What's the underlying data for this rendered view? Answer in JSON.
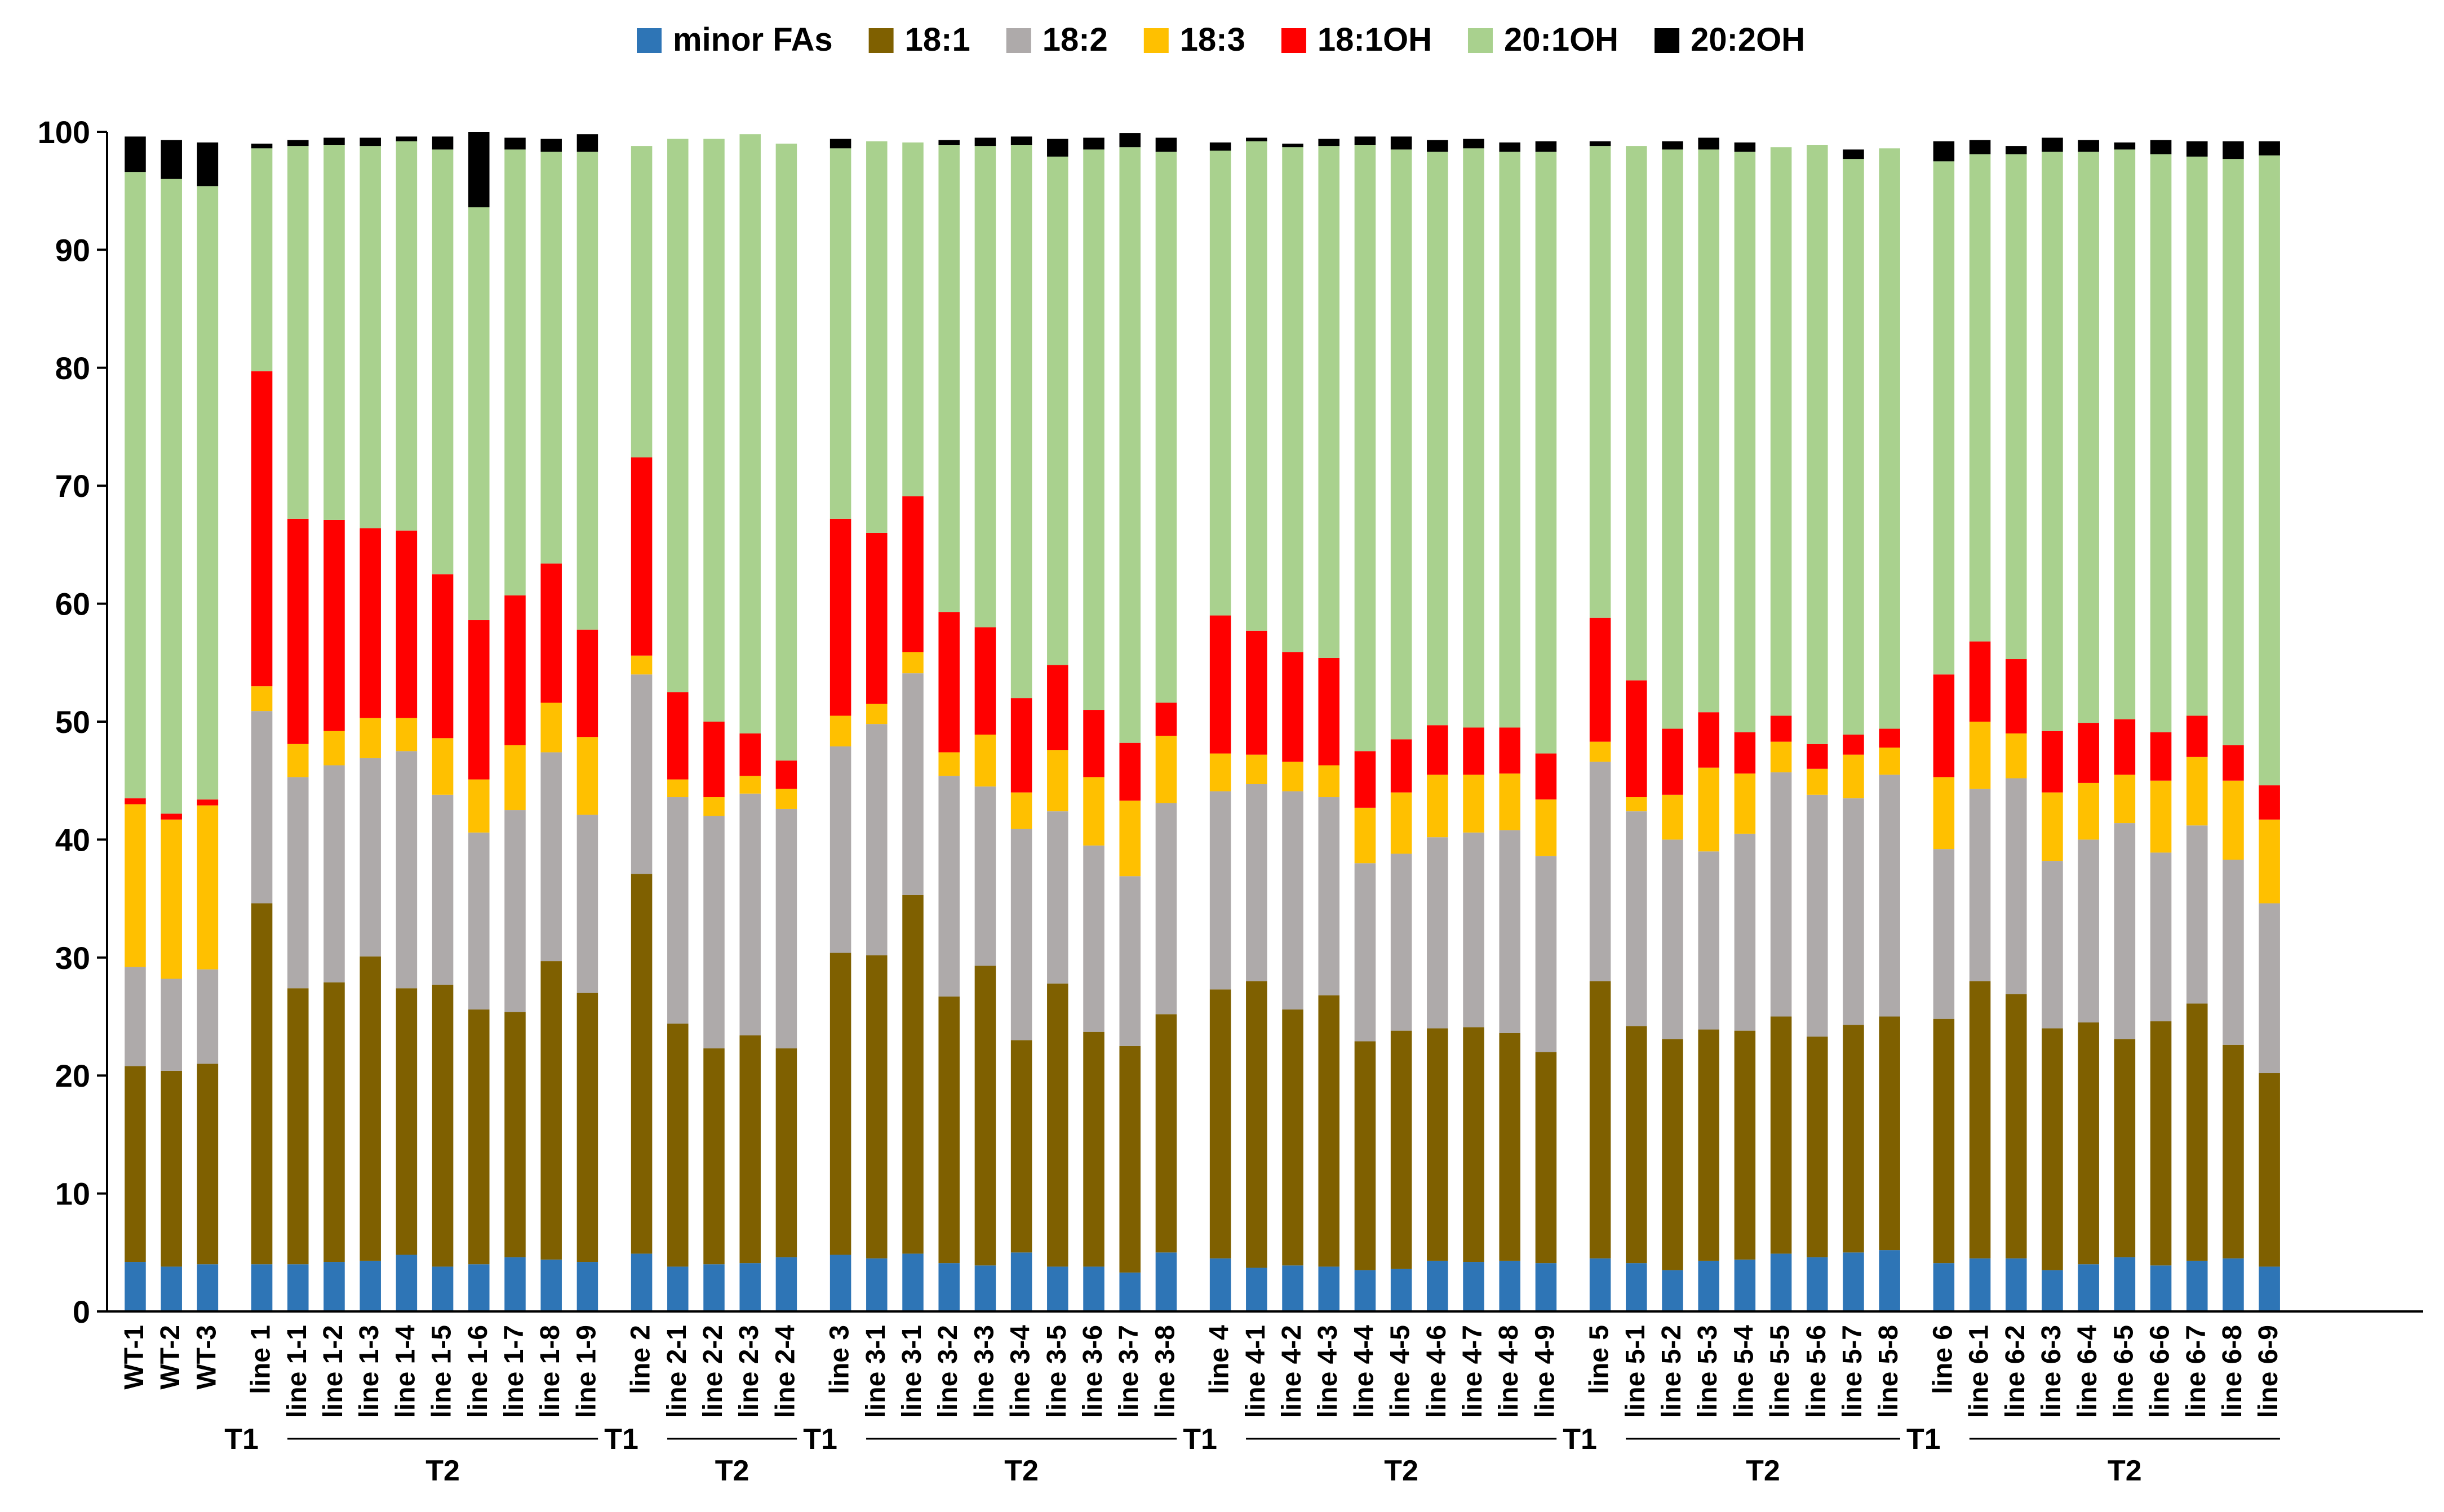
{
  "chart_data": {
    "type": "bar",
    "stacked": true,
    "title": "",
    "xlabel": "",
    "ylabel": "",
    "ylim": [
      0,
      100
    ],
    "yticks": [
      0,
      10,
      20,
      30,
      40,
      50,
      60,
      70,
      80,
      90,
      100
    ],
    "grid": false,
    "legend_position": "top",
    "series": [
      {
        "name": "minor FAs",
        "color": "#2E75B6"
      },
      {
        "name": "18:1",
        "color": "#7F6000"
      },
      {
        "name": "18:2",
        "color": "#AEAAAA"
      },
      {
        "name": "18:3",
        "color": "#FFC000"
      },
      {
        "name": "18:1OH",
        "color": "#FF0000"
      },
      {
        "name": "20:1OH",
        "color": "#A9D18E"
      },
      {
        "name": "20:2OH",
        "color": "#000000"
      }
    ],
    "categories": [
      "WT-1",
      "WT-2",
      "WT-3",
      "line 1",
      "line 1-1",
      "line 1-2",
      "line 1-3",
      "line 1-4",
      "line 1-5",
      "line 1-6",
      "line 1-7",
      "line 1-8",
      "line 1-9",
      "line 2",
      "line 2-1",
      "line 2-2",
      "line 2-3",
      "line 2-4",
      "line 3",
      "line 3-1",
      "line 3-1",
      "line 3-2",
      "line 3-3",
      "line 3-4",
      "line 3-5",
      "line 3-6",
      "line 3-7",
      "line 3-8",
      "line 4",
      "line 4-1",
      "line 4-2",
      "line 4-3",
      "line 4-4",
      "line 4-5",
      "line 4-6",
      "line 4-7",
      "line 4-8",
      "line 4-9",
      "line 5",
      "line 5-1",
      "line 5-2",
      "line 5-3",
      "line 5-4",
      "line 5-5",
      "line 5-6",
      "line 5-7",
      "line 5-8",
      "line 6",
      "line 6-1",
      "line 6-2",
      "line 6-3",
      "line 6-4",
      "line 6-5",
      "line 6-6",
      "line 6-7",
      "line 6-8",
      "line 6-9"
    ],
    "groups": [
      {
        "start": 0,
        "count": 3,
        "t1_label": "",
        "t2_label": ""
      },
      {
        "start": 3,
        "count": 10,
        "t1_label": "T1",
        "t2_label": "T2"
      },
      {
        "start": 13,
        "count": 5,
        "t1_label": "T1",
        "t2_label": "T2"
      },
      {
        "start": 18,
        "count": 10,
        "t1_label": "T1",
        "t2_label": "T2"
      },
      {
        "start": 28,
        "count": 10,
        "t1_label": "T1",
        "t2_label": "T2"
      },
      {
        "start": 38,
        "count": 9,
        "t1_label": "T1",
        "t2_label": "T2"
      },
      {
        "start": 47,
        "count": 10,
        "t1_label": "T1",
        "t2_label": "T2"
      }
    ],
    "cumulative_values": [
      [
        4.2,
        20.8,
        29.2,
        43.0,
        43.5,
        96.6,
        99.6
      ],
      [
        3.8,
        20.4,
        28.2,
        41.7,
        42.2,
        96.0,
        99.3
      ],
      [
        4.0,
        21.0,
        29.0,
        42.9,
        43.4,
        95.4,
        99.1
      ],
      [
        4.0,
        34.6,
        50.9,
        53.0,
        79.7,
        98.6,
        99.0
      ],
      [
        4.0,
        27.4,
        45.3,
        48.1,
        67.2,
        98.8,
        99.3
      ],
      [
        4.2,
        27.9,
        46.3,
        49.2,
        67.1,
        98.9,
        99.5
      ],
      [
        4.3,
        30.1,
        46.9,
        50.3,
        66.4,
        98.8,
        99.5
      ],
      [
        4.8,
        27.4,
        47.5,
        50.3,
        66.2,
        99.2,
        99.6
      ],
      [
        3.8,
        27.7,
        43.8,
        48.6,
        62.5,
        98.5,
        99.6
      ],
      [
        4.0,
        25.6,
        40.6,
        45.1,
        58.6,
        93.6,
        100.0
      ],
      [
        4.6,
        25.4,
        42.5,
        48.0,
        60.7,
        98.5,
        99.5
      ],
      [
        4.4,
        29.7,
        47.4,
        51.6,
        63.4,
        98.3,
        99.4
      ],
      [
        4.2,
        27.0,
        42.1,
        48.7,
        57.8,
        98.3,
        99.8
      ],
      [
        4.9,
        37.1,
        54.0,
        55.6,
        72.4,
        98.8,
        98.8
      ],
      [
        3.8,
        24.4,
        43.6,
        45.1,
        52.5,
        99.4,
        99.4
      ],
      [
        4.0,
        22.3,
        42.0,
        43.6,
        50.0,
        99.4,
        99.4
      ],
      [
        4.1,
        23.4,
        43.9,
        45.4,
        49.0,
        99.8,
        99.8
      ],
      [
        4.6,
        22.3,
        42.6,
        44.3,
        46.7,
        99.0,
        99.0
      ],
      [
        4.8,
        30.4,
        47.9,
        50.5,
        67.2,
        98.6,
        99.4
      ],
      [
        4.5,
        30.2,
        49.8,
        51.5,
        66.0,
        99.2,
        99.2
      ],
      [
        4.9,
        35.3,
        54.1,
        55.9,
        69.1,
        99.1,
        99.1
      ],
      [
        4.1,
        26.7,
        45.4,
        47.4,
        59.3,
        98.9,
        99.3
      ],
      [
        3.9,
        29.3,
        44.5,
        48.9,
        58.0,
        98.8,
        99.5
      ],
      [
        5.0,
        23.0,
        40.9,
        44.0,
        52.0,
        98.9,
        99.6
      ],
      [
        3.8,
        27.8,
        42.4,
        47.6,
        54.8,
        97.9,
        99.4
      ],
      [
        3.8,
        23.7,
        39.5,
        45.3,
        51.0,
        98.5,
        99.5
      ],
      [
        3.3,
        22.5,
        36.9,
        43.3,
        48.2,
        98.7,
        99.9
      ],
      [
        5.0,
        25.2,
        43.1,
        48.8,
        51.6,
        98.3,
        99.5
      ],
      [
        4.5,
        27.3,
        44.1,
        47.3,
        59.0,
        98.4,
        99.1
      ],
      [
        3.7,
        28.0,
        44.7,
        47.2,
        57.7,
        99.2,
        99.5
      ],
      [
        3.9,
        25.6,
        44.1,
        46.6,
        55.9,
        98.7,
        99.0
      ],
      [
        3.8,
        26.8,
        43.6,
        46.3,
        55.4,
        98.8,
        99.4
      ],
      [
        3.5,
        22.9,
        38.0,
        42.7,
        47.5,
        98.9,
        99.6
      ],
      [
        3.6,
        23.8,
        38.8,
        44.0,
        48.5,
        98.5,
        99.6
      ],
      [
        4.3,
        24.0,
        40.2,
        45.5,
        49.7,
        98.3,
        99.3
      ],
      [
        4.2,
        24.1,
        40.6,
        45.5,
        49.5,
        98.6,
        99.4
      ],
      [
        4.3,
        23.6,
        40.8,
        45.6,
        49.5,
        98.3,
        99.1
      ],
      [
        4.1,
        22.0,
        38.6,
        43.4,
        47.3,
        98.3,
        99.2
      ],
      [
        4.5,
        28.0,
        46.6,
        48.3,
        58.8,
        98.8,
        99.2
      ],
      [
        4.1,
        24.2,
        42.4,
        43.6,
        53.5,
        98.8,
        98.8
      ],
      [
        3.5,
        23.1,
        40.0,
        43.8,
        49.4,
        98.5,
        99.2
      ],
      [
        4.3,
        23.9,
        39.0,
        46.1,
        50.8,
        98.5,
        99.5
      ],
      [
        4.4,
        23.8,
        40.5,
        45.6,
        49.1,
        98.3,
        99.1
      ],
      [
        4.9,
        25.0,
        45.7,
        48.3,
        50.5,
        98.7,
        98.7
      ],
      [
        4.6,
        23.3,
        43.8,
        46.0,
        48.1,
        98.9,
        98.9
      ],
      [
        5.0,
        24.3,
        43.5,
        47.2,
        48.9,
        97.7,
        98.5
      ],
      [
        5.2,
        25.0,
        45.5,
        47.8,
        49.4,
        98.6,
        98.6
      ],
      [
        4.1,
        24.8,
        39.2,
        45.3,
        54.0,
        97.5,
        99.2
      ],
      [
        4.5,
        28.0,
        44.3,
        50.0,
        56.8,
        98.1,
        99.3
      ],
      [
        4.5,
        26.9,
        45.2,
        49.0,
        55.3,
        98.1,
        98.8
      ],
      [
        3.5,
        24.0,
        38.2,
        44.0,
        49.2,
        98.3,
        99.5
      ],
      [
        4.0,
        24.5,
        40.0,
        44.8,
        49.9,
        98.3,
        99.3
      ],
      [
        4.6,
        23.1,
        41.4,
        45.5,
        50.2,
        98.5,
        99.1
      ],
      [
        3.9,
        24.6,
        38.9,
        45.0,
        49.1,
        98.1,
        99.3
      ],
      [
        4.3,
        26.1,
        41.2,
        47.0,
        50.5,
        97.9,
        99.2
      ],
      [
        4.5,
        22.6,
        38.3,
        45.0,
        48.0,
        97.7,
        99.2
      ],
      [
        3.8,
        20.2,
        34.6,
        41.7,
        44.6,
        98.0,
        99.2
      ]
    ]
  }
}
